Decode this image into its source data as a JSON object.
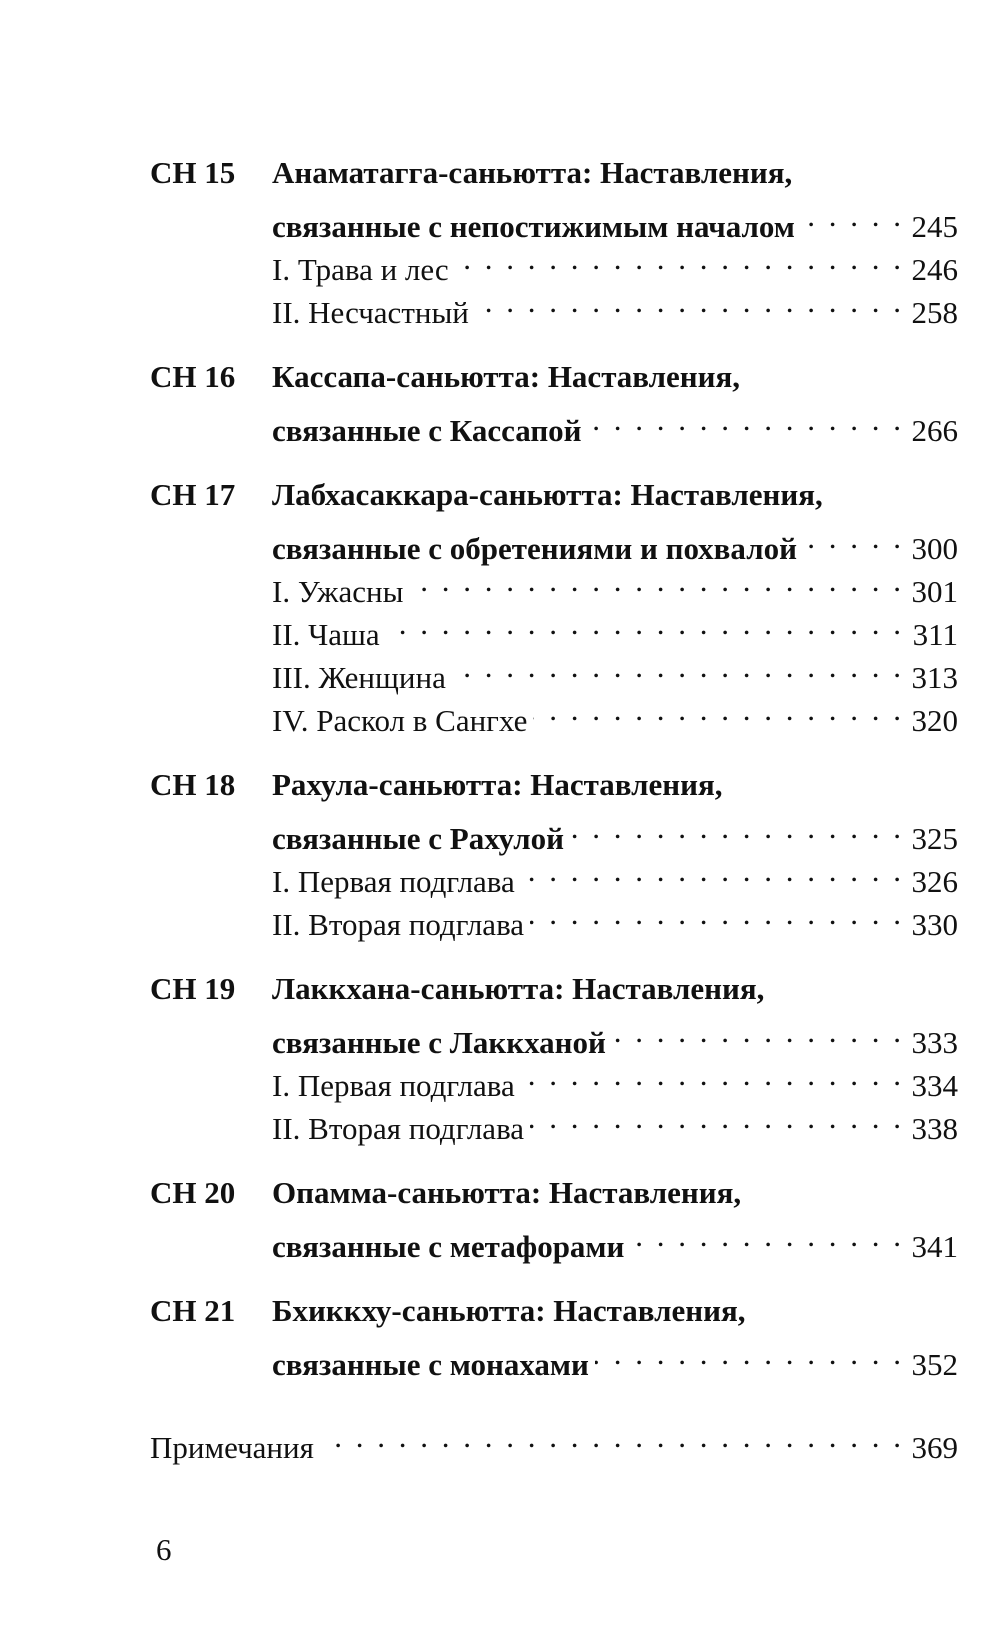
{
  "chapters": [
    {
      "code": "СН 15",
      "title_line1": "Анаматагга-саньютта: Наставления,",
      "title_line2": "связанные с непостижимым началом",
      "page": "245",
      "sections": [
        {
          "title": "I. Трава и лес",
          "page": "246"
        },
        {
          "title": "II. Несчастный",
          "page": "258"
        }
      ]
    },
    {
      "code": "СН 16",
      "title_line1": "Кассапа-саньютта: Наставления,",
      "title_line2": "связанные с Кассапой",
      "page": "266",
      "sections": []
    },
    {
      "code": "СН 17",
      "title_line1": "Лабхасаккара-саньютта: Наставления,",
      "title_line2": "связанные с обретениями и похвалой",
      "page": "300",
      "sections": [
        {
          "title": "I. Ужасны",
          "page": "301"
        },
        {
          "title": "II. Чаша",
          "page": "311"
        },
        {
          "title": "III. Женщина",
          "page": "313"
        },
        {
          "title": "IV. Раскол в Сангхе",
          "page": "320"
        }
      ]
    },
    {
      "code": "СН 18",
      "title_line1": "Рахула-саньютта: Наставления,",
      "title_line2": "связанные с Рахулой",
      "page": "325",
      "sections": [
        {
          "title": "I. Первая подглава",
          "page": "326"
        },
        {
          "title": "II. Вторая подглава",
          "page": "330"
        }
      ]
    },
    {
      "code": "СН 19",
      "title_line1": "Лаккхана-саньютта: Наставления,",
      "title_line2": "связанные с Лаккханой",
      "page": "333",
      "sections": [
        {
          "title": "I. Первая подглава",
          "page": "334"
        },
        {
          "title": "II. Вторая подглава",
          "page": "338"
        }
      ]
    },
    {
      "code": "СН 20",
      "title_line1": "Опамма-саньютта: Наставления,",
      "title_line2": "связанные с метафорами",
      "page": "341",
      "sections": []
    },
    {
      "code": "СН 21",
      "title_line1": "Бхиккху-саньютта: Наставления,",
      "title_line2": "связанные с монахами",
      "page": "352",
      "sections": []
    }
  ],
  "notes": {
    "title": "Примечания",
    "page": "369"
  },
  "folio": "6"
}
